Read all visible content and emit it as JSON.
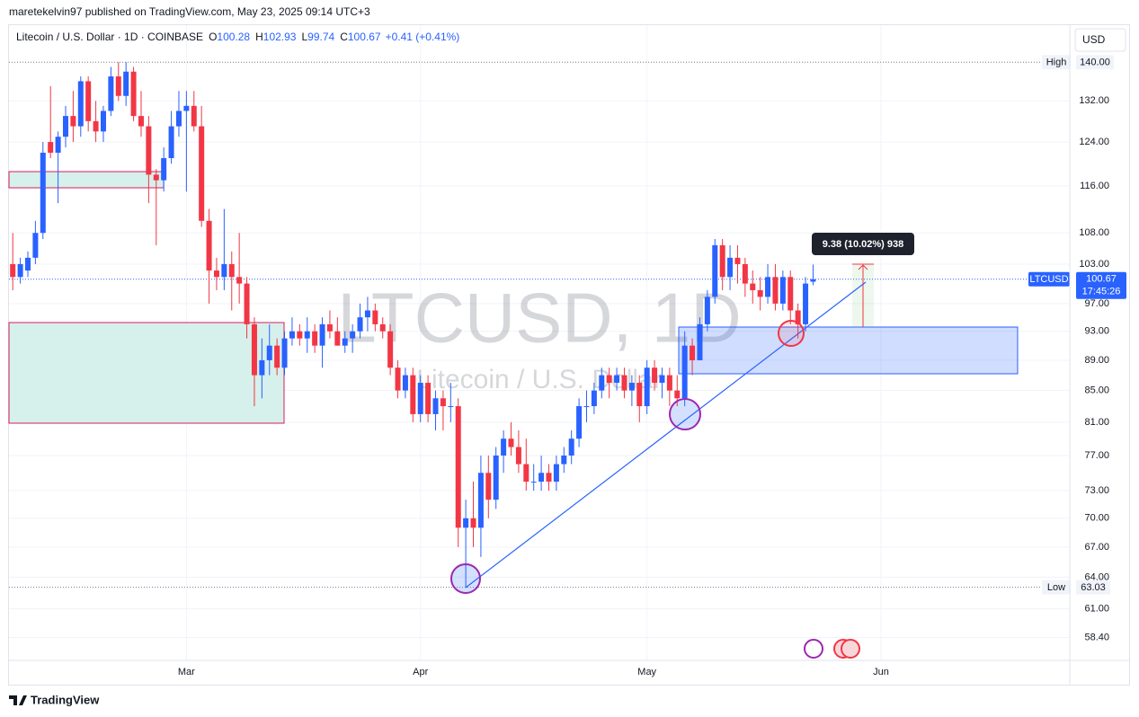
{
  "chart_data": {
    "type": "candlestick",
    "publisher": "maretekelvin97 published on TradingView.com, May 23, 2025 09:14 UTC+3",
    "legend": {
      "symbol": "Litecoin / U.S. Dollar · 1D · COINBASE",
      "ohlc": [
        {
          "key": "O",
          "text": "100.28"
        },
        {
          "key": "H",
          "text": "102.93"
        },
        {
          "key": "L",
          "text": "99.74"
        },
        {
          "key": "C",
          "text": "100.67"
        }
      ],
      "change": "+0.41 (+0.41%)"
    },
    "watermark": {
      "symbol": "LTCUSD, 1D",
      "name": "Litecoin / U.S. Dollar"
    },
    "currency": "USD",
    "brand": "TradingView",
    "up_color": "#2962ff",
    "down_color": "#f23645",
    "log_scale": true,
    "ylim": [
      56.4,
      148.1
    ],
    "xlim": [
      -0.5,
      140
    ],
    "yticks": [
      {
        "value": 132,
        "label": "132.00"
      },
      {
        "value": 124,
        "label": "124.00"
      },
      {
        "value": 116,
        "label": "116.00"
      },
      {
        "value": 108,
        "label": "108.00"
      },
      {
        "value": 103,
        "label": "103.00"
      },
      {
        "value": 97,
        "label": "97.00"
      },
      {
        "value": 93,
        "label": "93.00"
      },
      {
        "value": 89,
        "label": "89.00"
      },
      {
        "value": 85,
        "label": "85.00"
      },
      {
        "value": 81,
        "label": "81.00"
      },
      {
        "value": 77,
        "label": "77.00"
      },
      {
        "value": 73,
        "label": "73.00"
      },
      {
        "value": 70,
        "label": "70.00"
      },
      {
        "value": 67,
        "label": "67.00"
      },
      {
        "value": 64,
        "label": "64.00"
      },
      {
        "value": 61,
        "label": "61.00"
      },
      {
        "value": 58.4,
        "label": "58.40"
      }
    ],
    "xticks": [
      {
        "value": 23,
        "label": "Mar"
      },
      {
        "value": 54,
        "label": "Apr"
      },
      {
        "value": 84,
        "label": "May"
      },
      {
        "value": 115,
        "label": "Jun"
      }
    ],
    "grid": true,
    "high_line": {
      "name": "High",
      "value": 140,
      "label": "140.00"
    },
    "low_line": {
      "name": "Low",
      "value": 63.03,
      "label": "63.03"
    },
    "last_price": {
      "name": "LTCUSD",
      "value": 100.67,
      "label": "100.67",
      "countdown": "17:45:26"
    },
    "measure_label": "9.38 (10.02%) 938",
    "ohlc": [
      [
        103,
        108,
        99,
        101
      ],
      [
        101,
        104,
        100,
        103
      ],
      [
        102,
        105,
        101,
        104
      ],
      [
        104,
        110,
        103,
        108
      ],
      [
        108,
        124,
        107,
        122
      ],
      [
        124,
        135,
        121,
        122
      ],
      [
        122,
        126,
        113,
        125
      ],
      [
        125,
        131,
        123,
        129
      ],
      [
        129,
        134,
        124,
        127
      ],
      [
        127,
        137,
        125,
        136
      ],
      [
        136,
        137,
        126,
        128
      ],
      [
        128,
        132,
        124,
        126
      ],
      [
        126,
        131,
        124,
        130
      ],
      [
        130,
        139,
        129,
        137
      ],
      [
        137,
        140,
        132,
        133
      ],
      [
        133,
        140,
        131,
        138
      ],
      [
        138,
        139,
        128,
        129
      ],
      [
        129,
        134,
        125,
        127
      ],
      [
        127,
        129,
        113,
        118
      ],
      [
        118,
        119,
        106,
        117
      ],
      [
        117,
        123,
        115,
        121
      ],
      [
        121,
        130,
        120,
        127
      ],
      [
        127,
        134,
        125,
        130
      ],
      [
        130,
        134,
        115,
        131
      ],
      [
        131,
        134,
        126,
        127
      ],
      [
        127,
        131,
        109,
        110
      ],
      [
        110,
        112,
        97,
        102
      ],
      [
        102,
        104,
        99,
        101
      ],
      [
        101,
        112,
        99,
        103
      ],
      [
        103,
        105,
        96,
        101
      ],
      [
        101,
        108,
        97,
        100
      ],
      [
        100,
        101,
        92,
        94
      ],
      [
        94,
        95,
        83,
        87
      ],
      [
        87,
        92,
        84,
        89
      ],
      [
        89,
        94,
        87,
        91
      ],
      [
        91,
        92,
        87,
        88
      ],
      [
        88,
        93,
        87,
        92
      ],
      [
        92,
        95,
        91,
        93
      ],
      [
        93,
        94,
        91,
        92
      ],
      [
        92,
        95,
        90,
        93
      ],
      [
        93,
        94,
        90,
        91
      ],
      [
        91,
        95,
        88,
        94
      ],
      [
        94,
        96,
        92,
        93
      ],
      [
        93,
        95,
        91,
        91
      ],
      [
        91,
        93,
        90,
        92
      ],
      [
        92,
        94,
        90,
        93
      ],
      [
        93,
        97,
        92,
        95
      ],
      [
        95,
        98,
        93,
        96
      ],
      [
        96,
        97,
        93,
        94
      ],
      [
        94,
        95,
        92,
        93
      ],
      [
        93,
        94,
        87,
        88
      ],
      [
        88,
        89,
        84,
        85
      ],
      [
        85,
        88,
        84,
        87
      ],
      [
        87,
        88,
        81,
        82
      ],
      [
        82,
        87,
        81,
        86
      ],
      [
        86,
        87,
        81,
        82
      ],
      [
        82,
        85,
        80,
        84
      ],
      [
        84,
        85,
        80,
        83
      ],
      [
        83,
        86,
        81,
        83
      ],
      [
        83,
        84,
        67,
        69
      ],
      [
        69,
        72,
        63.03,
        70
      ],
      [
        70,
        74,
        67,
        69
      ],
      [
        69,
        77,
        66,
        75
      ],
      [
        75,
        77,
        70,
        72
      ],
      [
        72,
        78,
        71,
        77
      ],
      [
        77,
        80,
        75,
        79
      ],
      [
        79,
        81,
        77,
        78
      ],
      [
        78,
        80,
        75,
        76
      ],
      [
        76,
        79,
        73,
        74
      ],
      [
        74,
        76,
        73,
        74
      ],
      [
        74,
        77,
        73,
        75
      ],
      [
        75,
        76,
        73,
        74
      ],
      [
        74,
        77,
        73,
        76
      ],
      [
        76,
        78,
        75,
        77
      ],
      [
        77,
        80,
        76,
        79
      ],
      [
        79,
        84,
        78,
        83
      ],
      [
        83,
        85,
        81,
        83
      ],
      [
        83,
        86,
        82,
        85
      ],
      [
        85,
        88,
        84,
        87
      ],
      [
        87,
        88,
        84,
        86
      ],
      [
        86,
        88,
        85,
        87
      ],
      [
        87,
        88,
        84,
        85
      ],
      [
        85,
        87,
        83,
        86
      ],
      [
        86,
        87,
        81,
        83
      ],
      [
        83,
        89,
        82,
        88
      ],
      [
        88,
        89,
        85,
        86
      ],
      [
        86,
        88,
        84,
        87
      ],
      [
        87,
        88,
        83,
        85
      ],
      [
        85,
        87,
        83,
        84
      ],
      [
        84,
        93,
        83,
        91
      ],
      [
        91,
        92,
        87,
        89
      ],
      [
        89,
        95,
        89,
        94
      ],
      [
        94,
        99,
        93,
        98
      ],
      [
        98,
        107,
        97,
        106
      ],
      [
        106,
        107,
        99,
        101
      ],
      [
        101,
        106,
        99,
        104
      ],
      [
        104,
        106,
        100,
        103
      ],
      [
        103,
        104,
        98,
        100
      ],
      [
        100,
        102,
        97,
        99
      ],
      [
        99,
        101,
        96,
        98
      ],
      [
        98,
        103,
        97,
        101
      ],
      [
        101,
        103,
        96,
        97
      ],
      [
        97,
        102,
        96,
        101
      ],
      [
        101,
        102,
        94,
        96
      ],
      [
        96,
        97,
        92,
        94
      ],
      [
        94,
        101,
        93,
        100
      ],
      [
        100.28,
        102.93,
        99.74,
        100.67
      ]
    ]
  }
}
